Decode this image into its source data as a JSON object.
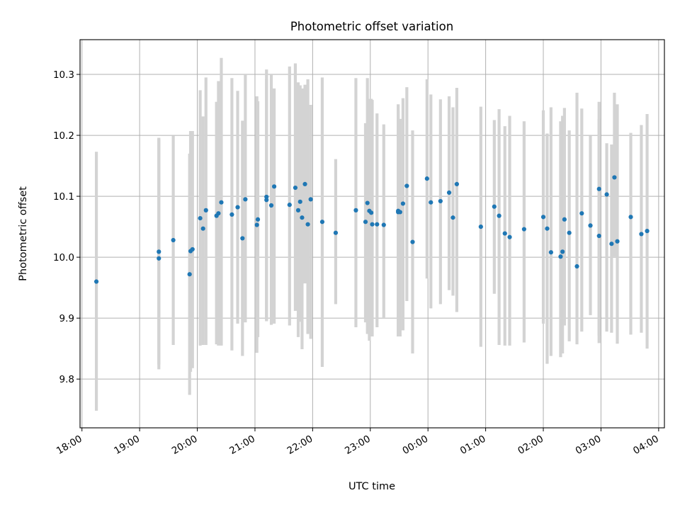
{
  "chart_data": {
    "type": "scatter",
    "title": "Photometric offset variation",
    "xlabel": "UTC time",
    "ylabel": "Photometric offset",
    "x_axis_kind": "time",
    "x_tick_labels": [
      "18:00",
      "19:00",
      "20:00",
      "21:00",
      "22:00",
      "23:00",
      "00:00",
      "01:00",
      "02:00",
      "03:00",
      "04:00"
    ],
    "x_tick_hours": [
      18,
      19,
      20,
      21,
      22,
      23,
      24,
      25,
      26,
      27,
      28
    ],
    "xlim_hours": [
      17.9667,
      28.1
    ],
    "y_ticks": [
      9.8,
      9.9,
      10.0,
      10.1,
      10.2,
      10.3
    ],
    "y_tick_labels": [
      "9.8",
      "9.9",
      "10.0",
      "10.1",
      "10.2",
      "10.3"
    ],
    "ylim": [
      9.72,
      10.357
    ],
    "grid": true,
    "colors": {
      "points": "#1f77b4",
      "errorbars": "#d3d3d3",
      "grid": "#b0b0b0"
    },
    "series": [
      {
        "x_time": [
          "18:15",
          "19:20",
          "19:20",
          "19:35",
          "19:52",
          "19:53",
          "19:55",
          "20:03",
          "20:06",
          "20:09",
          "20:20",
          "20:22",
          "20:25",
          "20:36",
          "20:42",
          "20:47",
          "20:50",
          "21:02",
          "21:03",
          "21:12",
          "21:12",
          "21:17",
          "21:20",
          "21:36",
          "21:42",
          "21:45",
          "21:47",
          "21:49",
          "21:52",
          "21:55",
          "21:58",
          "22:10",
          "22:24",
          "22:45",
          "22:55",
          "22:57",
          "22:59",
          "23:01",
          "23:02",
          "23:07",
          "23:14",
          "23:29",
          "23:29",
          "23:31",
          "23:34",
          "23:38",
          "23:44",
          "23:59",
          "00:03",
          "00:13",
          "00:22",
          "00:26",
          "00:30",
          "00:55",
          "01:09",
          "01:14",
          "01:20",
          "01:25",
          "01:40",
          "02:00",
          "02:04",
          "02:08",
          "02:18",
          "02:20",
          "02:22",
          "02:27",
          "02:35",
          "02:40",
          "02:49",
          "02:58",
          "02:58",
          "03:06",
          "03:11",
          "03:14",
          "03:17",
          "03:31",
          "03:42",
          "03:48"
        ],
        "y": [
          9.96,
          10.009,
          9.998,
          10.028,
          9.972,
          10.01,
          10.013,
          10.064,
          10.047,
          10.077,
          10.068,
          10.072,
          10.09,
          10.07,
          10.082,
          10.031,
          10.095,
          10.053,
          10.062,
          10.094,
          10.099,
          10.085,
          10.116,
          10.086,
          10.114,
          10.077,
          10.091,
          10.065,
          10.12,
          10.054,
          10.095,
          10.058,
          10.04,
          10.077,
          10.058,
          10.089,
          10.076,
          10.073,
          10.054,
          10.054,
          10.053,
          10.076,
          10.074,
          10.074,
          10.088,
          10.117,
          10.025,
          10.129,
          10.09,
          10.092,
          10.106,
          10.065,
          10.12,
          10.05,
          10.083,
          10.068,
          10.039,
          10.033,
          10.046,
          10.066,
          10.047,
          10.008,
          10.001,
          10.009,
          10.062,
          10.04,
          9.985,
          10.072,
          10.052,
          10.035,
          10.112,
          10.103,
          10.022,
          10.131,
          10.026,
          10.066,
          10.038,
          10.043
        ],
        "y_low": [
          9.748,
          9.824,
          9.816,
          9.856,
          9.774,
          9.812,
          9.818,
          9.855,
          9.856,
          9.856,
          9.857,
          9.855,
          9.855,
          9.847,
          9.891,
          9.838,
          9.893,
          9.843,
          9.869,
          9.897,
          9.895,
          9.889,
          9.891,
          9.888,
          9.912,
          9.869,
          9.894,
          9.849,
          9.957,
          9.874,
          9.866,
          9.82,
          9.923,
          9.885,
          9.893,
          9.874,
          9.863,
          9.875,
          9.87,
          9.885,
          9.901,
          9.87,
          9.886,
          9.87,
          9.88,
          9.928,
          9.842,
          9.965,
          9.916,
          9.923,
          9.946,
          9.937,
          9.91,
          9.853,
          9.94,
          9.856,
          9.855,
          9.855,
          9.86,
          9.891,
          9.825,
          9.838,
          9.836,
          9.842,
          9.888,
          9.862,
          9.857,
          9.878,
          9.905,
          9.859,
          9.871,
          9.878,
          9.876,
          10.001,
          9.858,
          9.873,
          9.876,
          9.85
        ],
        "y_high": [
          10.173,
          10.196,
          10.194,
          10.199,
          10.17,
          10.207,
          10.207,
          10.274,
          10.231,
          10.295,
          10.255,
          10.289,
          10.327,
          10.294,
          10.273,
          10.224,
          10.3,
          10.264,
          10.256,
          10.292,
          10.308,
          10.3,
          10.277,
          10.313,
          10.318,
          10.287,
          10.282,
          10.277,
          10.283,
          10.292,
          10.25,
          10.295,
          10.161,
          10.294,
          10.22,
          10.294,
          10.26,
          10.26,
          10.258,
          10.236,
          10.218,
          10.241,
          10.251,
          10.227,
          10.261,
          10.279,
          10.208,
          10.292,
          10.267,
          10.259,
          10.264,
          10.246,
          10.278,
          10.247,
          10.225,
          10.243,
          10.215,
          10.232,
          10.223,
          10.241,
          10.203,
          10.246,
          10.223,
          10.232,
          10.245,
          10.208,
          10.27,
          10.244,
          10.199,
          10.255,
          10.227,
          10.187,
          10.185,
          10.27,
          10.251,
          10.204,
          10.217,
          10.235
        ]
      }
    ]
  }
}
